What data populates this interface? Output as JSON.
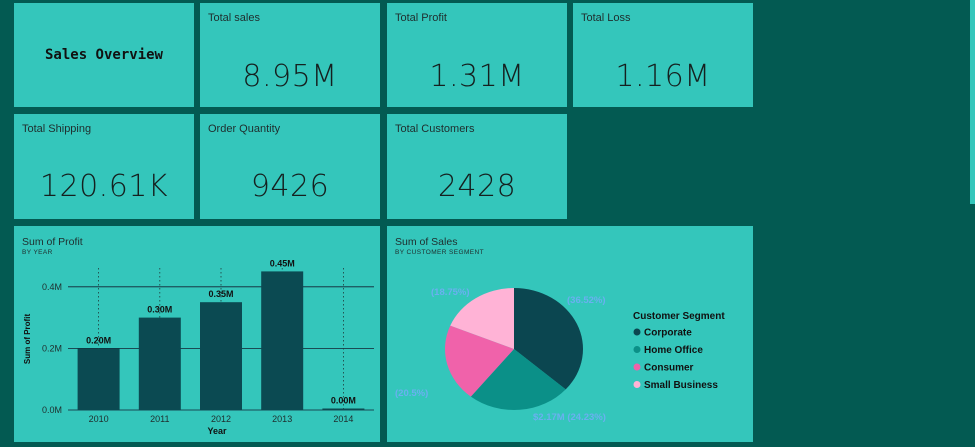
{
  "title": "Sales Overview",
  "kpis": {
    "total_sales": {
      "label": "Total sales",
      "value": "8.95M"
    },
    "total_profit": {
      "label": "Total Profit",
      "value": "1.31M"
    },
    "total_loss": {
      "label": "Total Loss",
      "value": "1.16M"
    },
    "total_shipping": {
      "label": "Total Shipping",
      "value": "120.61K"
    },
    "order_quantity": {
      "label": "Order Quantity",
      "value": "9426"
    },
    "total_customers": {
      "label": "Total Customers",
      "value": "2428"
    }
  },
  "chart_data": [
    {
      "type": "bar",
      "title": "Sum of Profit",
      "subtitle": "BY YEAR",
      "xlabel": "Year",
      "ylabel": "Sum of Profit",
      "categories": [
        "2010",
        "2011",
        "2012",
        "2013",
        "2014"
      ],
      "values": [
        0.2,
        0.3,
        0.35,
        0.45,
        0.0
      ],
      "data_labels": [
        "0.20M",
        "0.30M",
        "0.35M",
        "0.45M",
        "0.00M"
      ],
      "yticks": [
        "0.0M",
        "0.2M",
        "0.4M"
      ],
      "ytick_values": [
        0.0,
        0.2,
        0.4
      ],
      "ylim": [
        0,
        0.5
      ],
      "bar_color": "#0b4a52"
    },
    {
      "type": "pie",
      "title": "Sum of Sales",
      "subtitle": "BY CUSTOMER SEGMENT",
      "legend_title": "Customer Segment",
      "legend_position": "right",
      "slices": [
        {
          "name": "Corporate",
          "value": 36.52,
          "label": "(36.52%)",
          "color": "#0b4650"
        },
        {
          "name": "Home Office",
          "value": 24.23,
          "label": "$2.17M (24.23%)",
          "color": "#0b9088"
        },
        {
          "name": "Consumer",
          "value": 20.5,
          "label": "(20.5%)",
          "color": "#f062aa"
        },
        {
          "name": "Small Business",
          "value": 18.75,
          "label": "(18.75%)",
          "color": "#ffb3d6"
        }
      ]
    }
  ]
}
